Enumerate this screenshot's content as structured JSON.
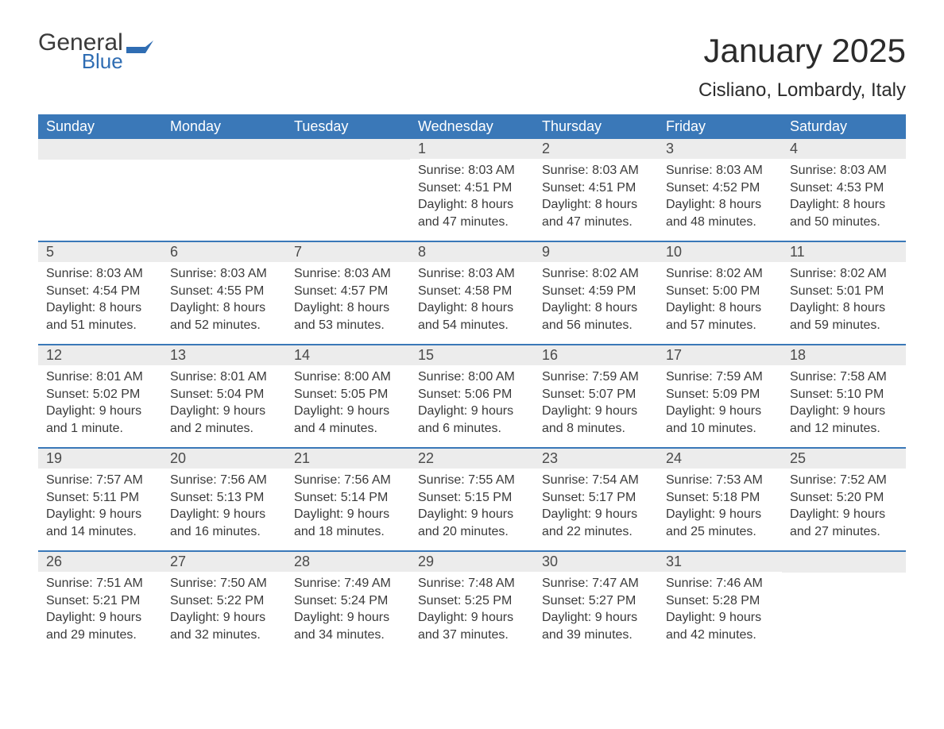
{
  "brand": {
    "general": "General",
    "blue": "Blue"
  },
  "title": "January 2025",
  "location": "Cisliano, Lombardy, Italy",
  "colors": {
    "header_bg": "#3a78b8",
    "row_divider": "#3a78b8",
    "daynum_bg": "#ececec",
    "text": "#3a3a3a",
    "brand_blue": "#2f6db3",
    "page_bg": "#ffffff"
  },
  "weekdays": [
    "Sunday",
    "Monday",
    "Tuesday",
    "Wednesday",
    "Thursday",
    "Friday",
    "Saturday"
  ],
  "weeks": [
    [
      {
        "day": null
      },
      {
        "day": null
      },
      {
        "day": null
      },
      {
        "day": "1",
        "sunrise": "Sunrise: 8:03 AM",
        "sunset": "Sunset: 4:51 PM",
        "d1": "Daylight: 8 hours",
        "d2": "and 47 minutes."
      },
      {
        "day": "2",
        "sunrise": "Sunrise: 8:03 AM",
        "sunset": "Sunset: 4:51 PM",
        "d1": "Daylight: 8 hours",
        "d2": "and 47 minutes."
      },
      {
        "day": "3",
        "sunrise": "Sunrise: 8:03 AM",
        "sunset": "Sunset: 4:52 PM",
        "d1": "Daylight: 8 hours",
        "d2": "and 48 minutes."
      },
      {
        "day": "4",
        "sunrise": "Sunrise: 8:03 AM",
        "sunset": "Sunset: 4:53 PM",
        "d1": "Daylight: 8 hours",
        "d2": "and 50 minutes."
      }
    ],
    [
      {
        "day": "5",
        "sunrise": "Sunrise: 8:03 AM",
        "sunset": "Sunset: 4:54 PM",
        "d1": "Daylight: 8 hours",
        "d2": "and 51 minutes."
      },
      {
        "day": "6",
        "sunrise": "Sunrise: 8:03 AM",
        "sunset": "Sunset: 4:55 PM",
        "d1": "Daylight: 8 hours",
        "d2": "and 52 minutes."
      },
      {
        "day": "7",
        "sunrise": "Sunrise: 8:03 AM",
        "sunset": "Sunset: 4:57 PM",
        "d1": "Daylight: 8 hours",
        "d2": "and 53 minutes."
      },
      {
        "day": "8",
        "sunrise": "Sunrise: 8:03 AM",
        "sunset": "Sunset: 4:58 PM",
        "d1": "Daylight: 8 hours",
        "d2": "and 54 minutes."
      },
      {
        "day": "9",
        "sunrise": "Sunrise: 8:02 AM",
        "sunset": "Sunset: 4:59 PM",
        "d1": "Daylight: 8 hours",
        "d2": "and 56 minutes."
      },
      {
        "day": "10",
        "sunrise": "Sunrise: 8:02 AM",
        "sunset": "Sunset: 5:00 PM",
        "d1": "Daylight: 8 hours",
        "d2": "and 57 minutes."
      },
      {
        "day": "11",
        "sunrise": "Sunrise: 8:02 AM",
        "sunset": "Sunset: 5:01 PM",
        "d1": "Daylight: 8 hours",
        "d2": "and 59 minutes."
      }
    ],
    [
      {
        "day": "12",
        "sunrise": "Sunrise: 8:01 AM",
        "sunset": "Sunset: 5:02 PM",
        "d1": "Daylight: 9 hours",
        "d2": "and 1 minute."
      },
      {
        "day": "13",
        "sunrise": "Sunrise: 8:01 AM",
        "sunset": "Sunset: 5:04 PM",
        "d1": "Daylight: 9 hours",
        "d2": "and 2 minutes."
      },
      {
        "day": "14",
        "sunrise": "Sunrise: 8:00 AM",
        "sunset": "Sunset: 5:05 PM",
        "d1": "Daylight: 9 hours",
        "d2": "and 4 minutes."
      },
      {
        "day": "15",
        "sunrise": "Sunrise: 8:00 AM",
        "sunset": "Sunset: 5:06 PM",
        "d1": "Daylight: 9 hours",
        "d2": "and 6 minutes."
      },
      {
        "day": "16",
        "sunrise": "Sunrise: 7:59 AM",
        "sunset": "Sunset: 5:07 PM",
        "d1": "Daylight: 9 hours",
        "d2": "and 8 minutes."
      },
      {
        "day": "17",
        "sunrise": "Sunrise: 7:59 AM",
        "sunset": "Sunset: 5:09 PM",
        "d1": "Daylight: 9 hours",
        "d2": "and 10 minutes."
      },
      {
        "day": "18",
        "sunrise": "Sunrise: 7:58 AM",
        "sunset": "Sunset: 5:10 PM",
        "d1": "Daylight: 9 hours",
        "d2": "and 12 minutes."
      }
    ],
    [
      {
        "day": "19",
        "sunrise": "Sunrise: 7:57 AM",
        "sunset": "Sunset: 5:11 PM",
        "d1": "Daylight: 9 hours",
        "d2": "and 14 minutes."
      },
      {
        "day": "20",
        "sunrise": "Sunrise: 7:56 AM",
        "sunset": "Sunset: 5:13 PM",
        "d1": "Daylight: 9 hours",
        "d2": "and 16 minutes."
      },
      {
        "day": "21",
        "sunrise": "Sunrise: 7:56 AM",
        "sunset": "Sunset: 5:14 PM",
        "d1": "Daylight: 9 hours",
        "d2": "and 18 minutes."
      },
      {
        "day": "22",
        "sunrise": "Sunrise: 7:55 AM",
        "sunset": "Sunset: 5:15 PM",
        "d1": "Daylight: 9 hours",
        "d2": "and 20 minutes."
      },
      {
        "day": "23",
        "sunrise": "Sunrise: 7:54 AM",
        "sunset": "Sunset: 5:17 PM",
        "d1": "Daylight: 9 hours",
        "d2": "and 22 minutes."
      },
      {
        "day": "24",
        "sunrise": "Sunrise: 7:53 AM",
        "sunset": "Sunset: 5:18 PM",
        "d1": "Daylight: 9 hours",
        "d2": "and 25 minutes."
      },
      {
        "day": "25",
        "sunrise": "Sunrise: 7:52 AM",
        "sunset": "Sunset: 5:20 PM",
        "d1": "Daylight: 9 hours",
        "d2": "and 27 minutes."
      }
    ],
    [
      {
        "day": "26",
        "sunrise": "Sunrise: 7:51 AM",
        "sunset": "Sunset: 5:21 PM",
        "d1": "Daylight: 9 hours",
        "d2": "and 29 minutes."
      },
      {
        "day": "27",
        "sunrise": "Sunrise: 7:50 AM",
        "sunset": "Sunset: 5:22 PM",
        "d1": "Daylight: 9 hours",
        "d2": "and 32 minutes."
      },
      {
        "day": "28",
        "sunrise": "Sunrise: 7:49 AM",
        "sunset": "Sunset: 5:24 PM",
        "d1": "Daylight: 9 hours",
        "d2": "and 34 minutes."
      },
      {
        "day": "29",
        "sunrise": "Sunrise: 7:48 AM",
        "sunset": "Sunset: 5:25 PM",
        "d1": "Daylight: 9 hours",
        "d2": "and 37 minutes."
      },
      {
        "day": "30",
        "sunrise": "Sunrise: 7:47 AM",
        "sunset": "Sunset: 5:27 PM",
        "d1": "Daylight: 9 hours",
        "d2": "and 39 minutes."
      },
      {
        "day": "31",
        "sunrise": "Sunrise: 7:46 AM",
        "sunset": "Sunset: 5:28 PM",
        "d1": "Daylight: 9 hours",
        "d2": "and 42 minutes."
      },
      {
        "day": null
      }
    ]
  ]
}
